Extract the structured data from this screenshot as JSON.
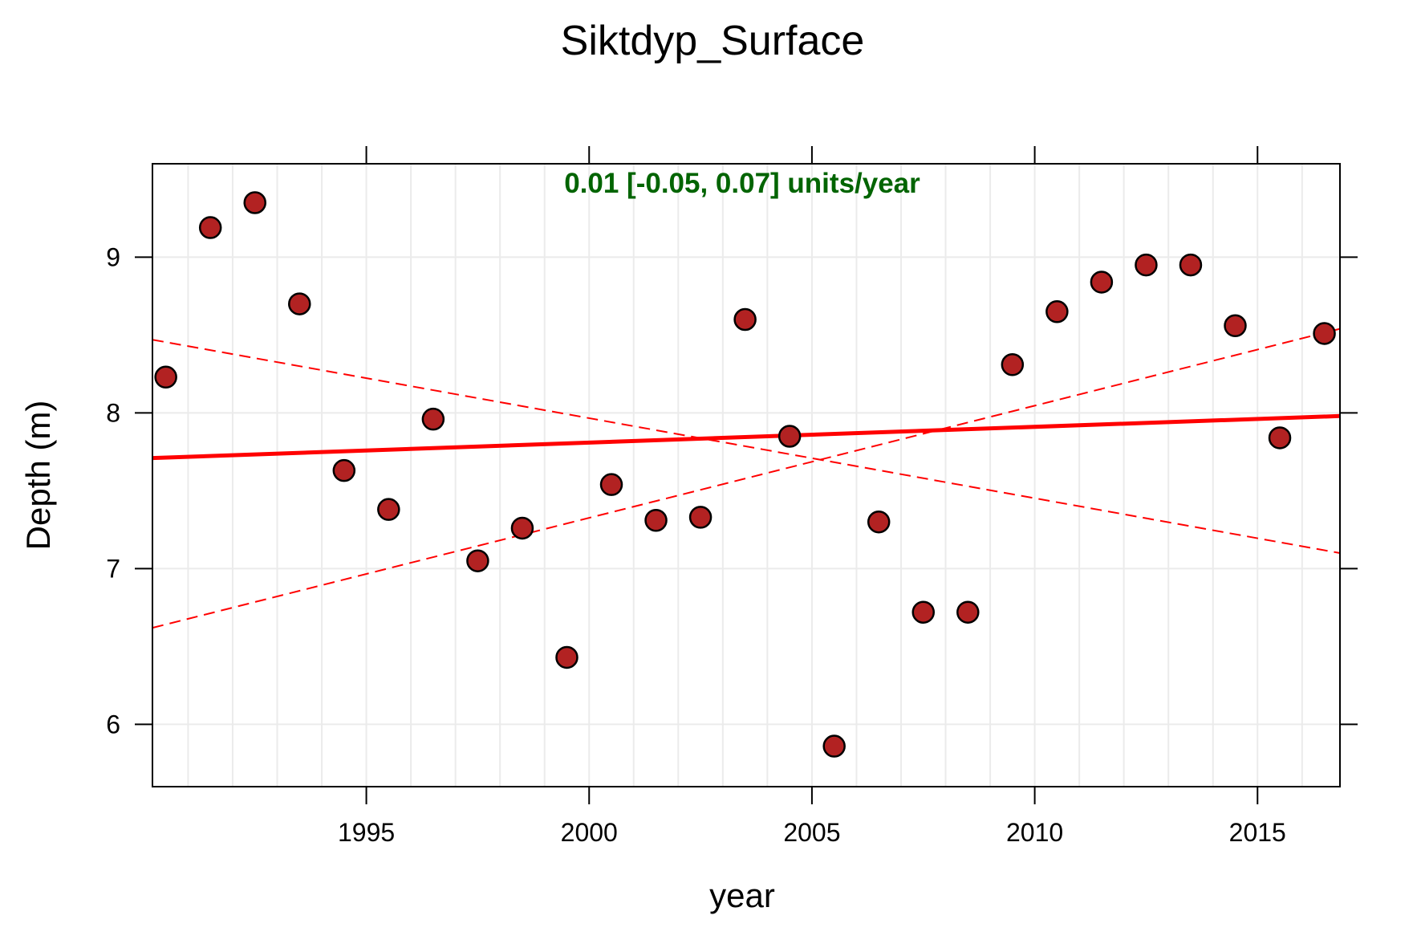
{
  "chart_data": {
    "type": "scatter",
    "title": "Siktdyp_Surface",
    "xlabel": "year",
    "ylabel": "Depth (m)",
    "annotation": "0.01 [-0.05, 0.07] units/year",
    "xlim": [
      1990.2,
      2016.85
    ],
    "ylim": [
      5.6,
      9.6
    ],
    "x_ticks": [
      1995,
      2000,
      2005,
      2010,
      2015
    ],
    "y_ticks": [
      6,
      7,
      8,
      9
    ],
    "grid": true,
    "series": [
      {
        "type": "scatter",
        "x": [
          1990.5,
          1991.5,
          1992.5,
          1993.5,
          1994.5,
          1995.5,
          1996.5,
          1997.5,
          1998.5,
          1999.5,
          2000.5,
          2001.5,
          2002.5,
          2003.5,
          2004.5,
          2005.5,
          2006.5,
          2007.5,
          2008.5,
          2009.5,
          2010.5,
          2011.5,
          2012.5,
          2013.5,
          2014.5,
          2015.5,
          2016.5
        ],
        "y": [
          8.23,
          9.19,
          9.35,
          8.7,
          7.63,
          7.38,
          7.96,
          7.05,
          7.26,
          6.43,
          7.54,
          7.31,
          7.33,
          8.6,
          7.85,
          5.86,
          7.3,
          6.72,
          6.72,
          8.31,
          8.65,
          8.84,
          8.95,
          8.95,
          8.56,
          7.84,
          8.51
        ],
        "color": "#b22222"
      }
    ],
    "trend": {
      "x": [
        1990.2,
        2016.85
      ],
      "y": [
        7.71,
        7.98
      ],
      "color": "#ff0000"
    },
    "ci_upper": {
      "x": [
        1990.2,
        2016.85
      ],
      "y": [
        6.62,
        8.54
      ],
      "color": "#ff0000"
    },
    "ci_lower": {
      "x": [
        1990.2,
        2016.85
      ],
      "y": [
        8.47,
        7.1
      ],
      "color": "#ff0000"
    },
    "annotation_color": "#006400"
  }
}
